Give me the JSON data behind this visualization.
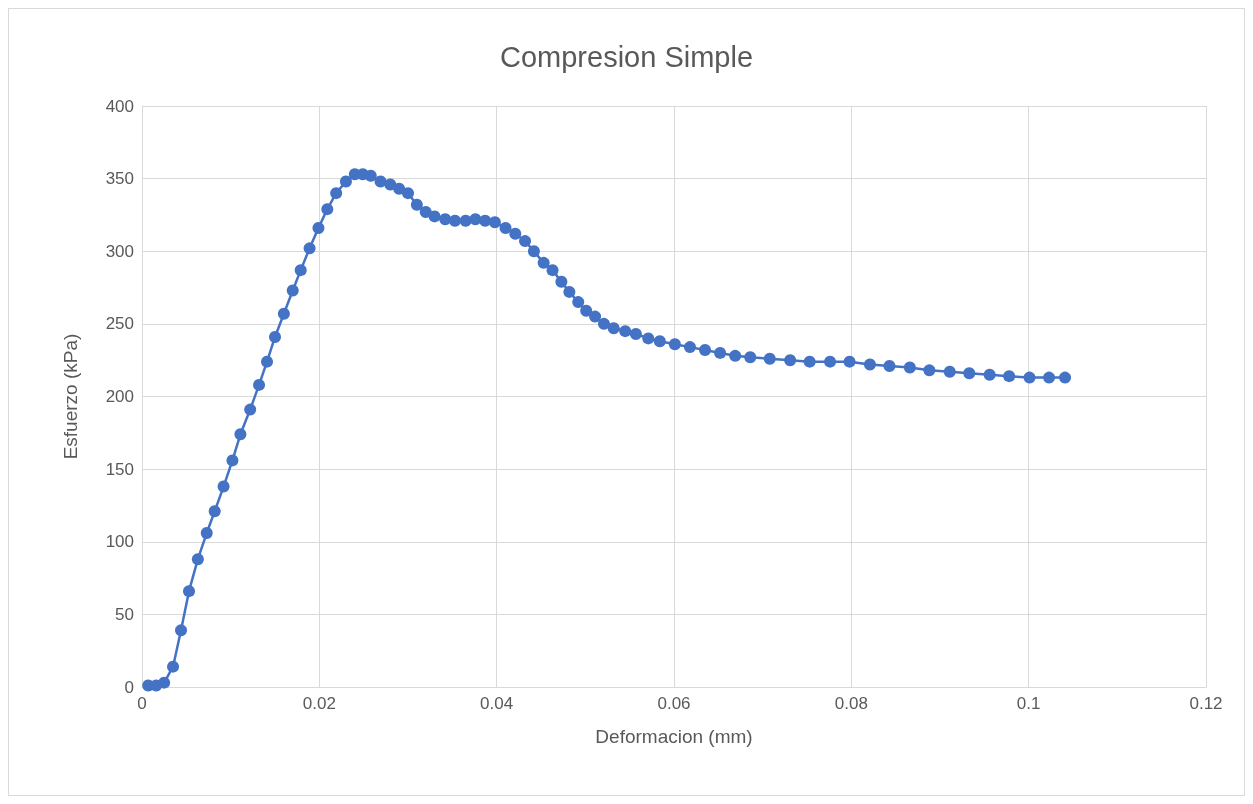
{
  "chart_data": {
    "type": "line",
    "title": "Compresion Simple",
    "xlabel": "Deformacion (mm)",
    "ylabel": "Esfuerzo (kPa)",
    "xlim": [
      0,
      0.12
    ],
    "xticks": [
      0,
      0.02,
      0.04,
      0.06,
      0.08,
      0.1,
      0.12
    ],
    "ylim": [
      0,
      400
    ],
    "yticks": [
      0,
      50,
      100,
      150,
      200,
      250,
      300,
      350,
      400
    ],
    "grid": true,
    "marker": "circle",
    "line_style": "solid",
    "series": [
      {
        "color": "#4472c4",
        "x": [
          0.0007,
          0.0016,
          0.0025,
          0.0035,
          0.0044,
          0.0053,
          0.0063,
          0.0073,
          0.0082,
          0.0092,
          0.0102,
          0.0111,
          0.0122,
          0.0132,
          0.0141,
          0.015,
          0.016,
          0.017,
          0.0179,
          0.0189,
          0.0199,
          0.0209,
          0.0219,
          0.023,
          0.024,
          0.0249,
          0.0258,
          0.0269,
          0.028,
          0.029,
          0.03,
          0.031,
          0.032,
          0.033,
          0.0342,
          0.0353,
          0.0365,
          0.0376,
          0.0387,
          0.0398,
          0.041,
          0.0421,
          0.0432,
          0.0442,
          0.0453,
          0.0463,
          0.0473,
          0.0482,
          0.0492,
          0.0501,
          0.0511,
          0.0521,
          0.0532,
          0.0545,
          0.0557,
          0.0571,
          0.0584,
          0.0601,
          0.0618,
          0.0635,
          0.0652,
          0.0669,
          0.0686,
          0.0708,
          0.0731,
          0.0753,
          0.0776,
          0.0798,
          0.0821,
          0.0843,
          0.0866,
          0.0888,
          0.0911,
          0.0933,
          0.0956,
          0.0978,
          0.1001,
          0.1023,
          0.1041
        ],
        "values": [
          1,
          1,
          3,
          14,
          39,
          66,
          88,
          106,
          121,
          138,
          156,
          174,
          191,
          208,
          224,
          241,
          257,
          273,
          287,
          302,
          316,
          329,
          340,
          348,
          353,
          353,
          352,
          348,
          346,
          343,
          340,
          332,
          327,
          324,
          322,
          321,
          321,
          322,
          321,
          320,
          316,
          312,
          307,
          300,
          292,
          287,
          279,
          272,
          265,
          259,
          255,
          250,
          247,
          245,
          243,
          240,
          238,
          236,
          234,
          232,
          230,
          228,
          227,
          226,
          225,
          224,
          224,
          224,
          222,
          221,
          220,
          218,
          217,
          216,
          215,
          214,
          213,
          213,
          213
        ]
      }
    ]
  }
}
